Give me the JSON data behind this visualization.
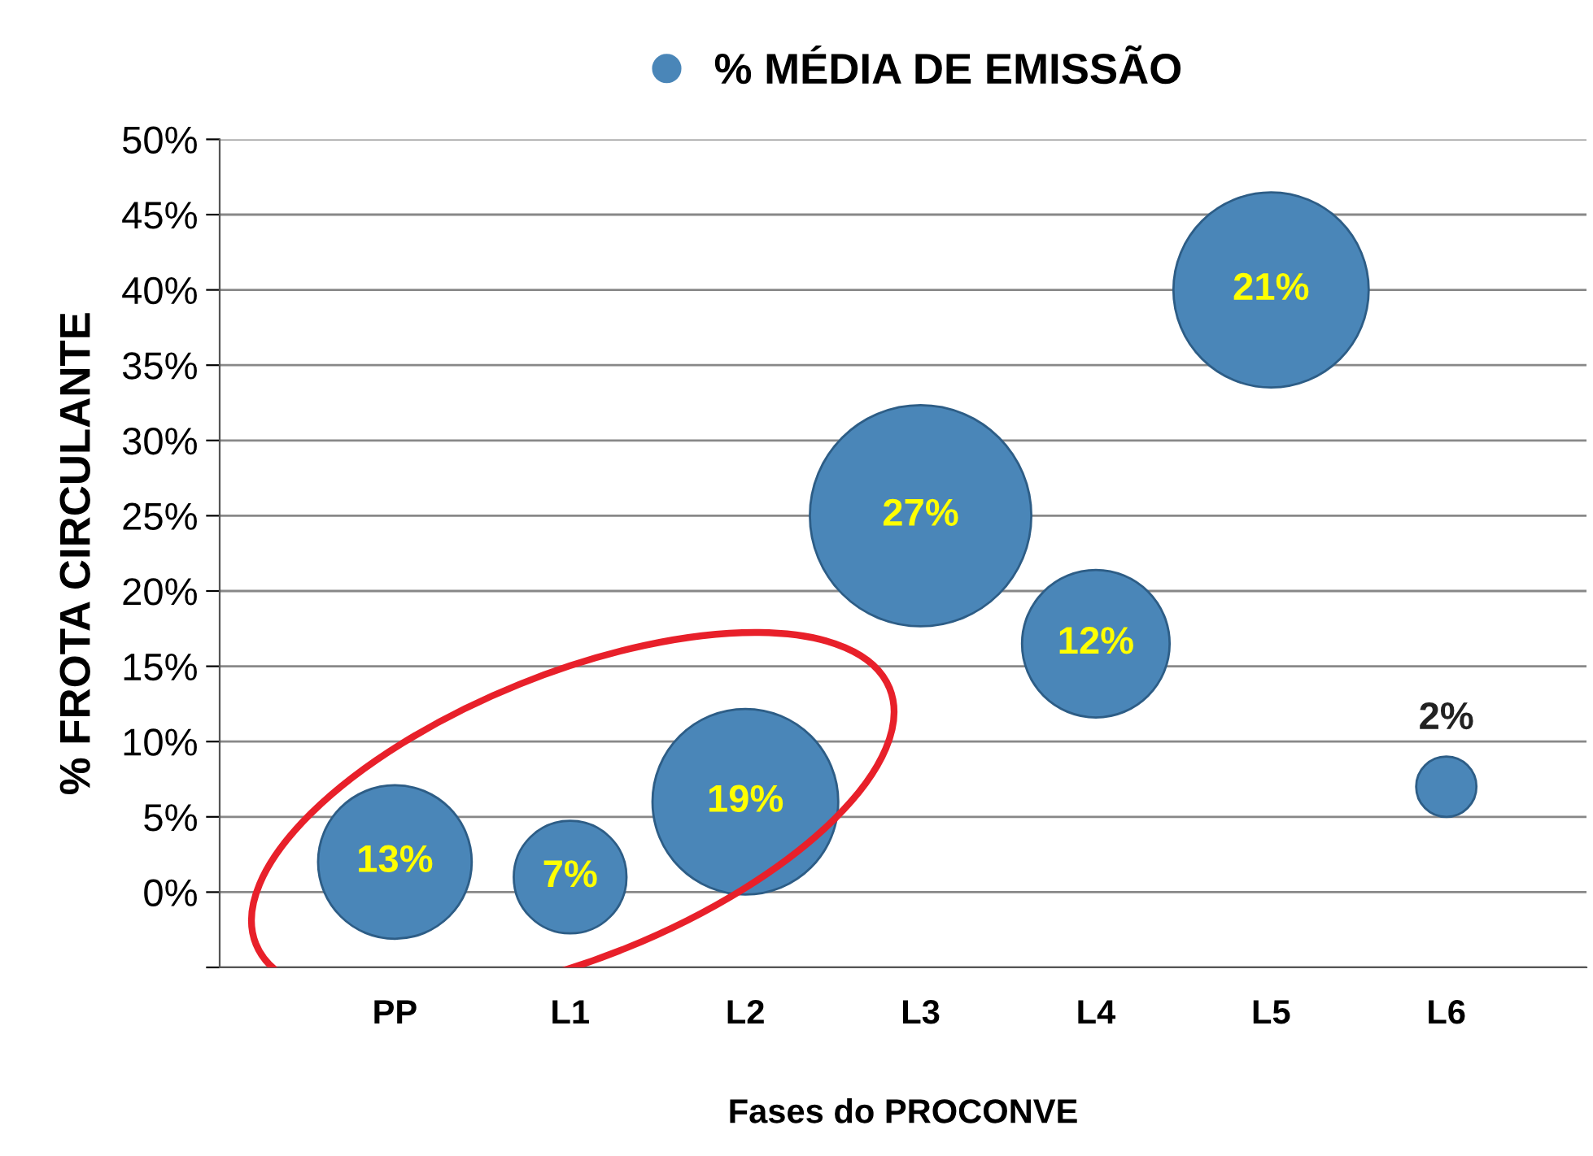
{
  "chart_data": {
    "type": "bubble",
    "xlabel": "Fases do PROCONVE",
    "ylabel": "% FROTA CIRCULANTE",
    "categories": [
      "PP",
      "L1",
      "L2",
      "L3",
      "L4",
      "L5",
      "L6"
    ],
    "series": [
      {
        "name": "% MÉDIA DE EMISSÃO",
        "color": "#4a86b8",
        "values": [
          2,
          1,
          6,
          25,
          16.5,
          40,
          7
        ],
        "sizes": [
          13,
          7,
          19,
          27,
          12,
          21,
          2
        ],
        "value_labels": [
          "13%",
          "7%",
          "19%",
          "27%",
          "12%",
          "21%",
          "2%"
        ]
      }
    ],
    "ylim": [
      -5,
      50
    ],
    "yticks": [
      {
        "value": -5,
        "label": null
      },
      {
        "value": 0,
        "label": "0%"
      },
      {
        "value": 5,
        "label": "5%"
      },
      {
        "value": 10,
        "label": "10%"
      },
      {
        "value": 15,
        "label": "15%"
      },
      {
        "value": 20,
        "label": "20%"
      },
      {
        "value": 25,
        "label": "25%"
      },
      {
        "value": 30,
        "label": "30%"
      },
      {
        "value": 35,
        "label": "35%"
      },
      {
        "value": 40,
        "label": "40%"
      },
      {
        "value": 45,
        "label": "45%"
      },
      {
        "value": 50,
        "label": "50%"
      }
    ],
    "grid": "y",
    "legend": "top"
  }
}
